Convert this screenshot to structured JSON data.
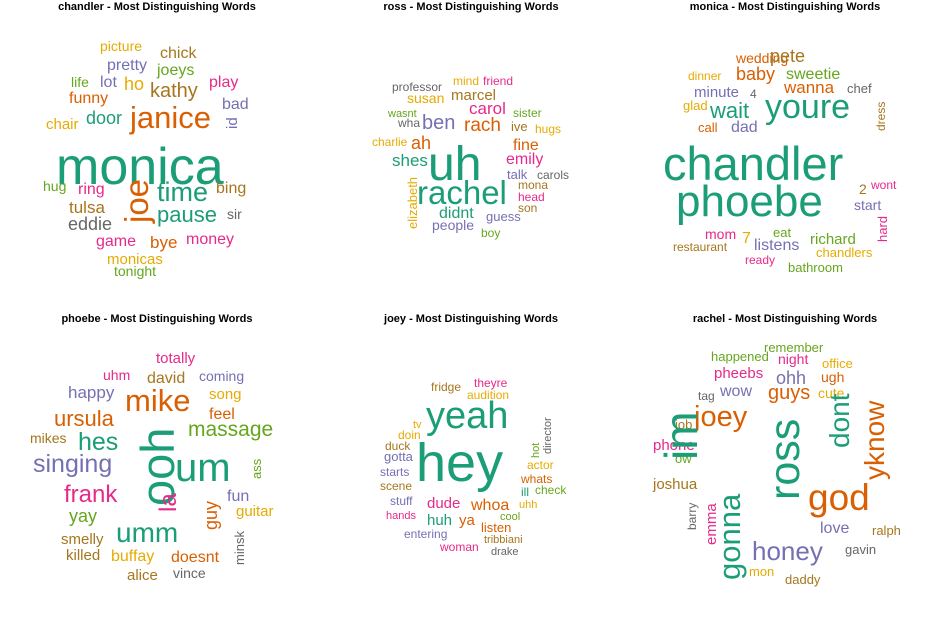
{
  "palette": {
    "teal": "#1b9e77",
    "orange": "#d95f02",
    "purple": "#7570b3",
    "pink": "#e7298a",
    "green": "#66a61e",
    "gold": "#e6ab02",
    "brown": "#a6761d",
    "gray": "#666666"
  },
  "chart_data": [
    {
      "type": "wordcloud",
      "title": "chandler - Most Distinguishing Words",
      "words": [
        {
          "text": "picture",
          "color": "gold"
        },
        {
          "text": "chick",
          "color": "brown"
        },
        {
          "text": "pretty",
          "color": "purple"
        },
        {
          "text": "joeys",
          "color": "green"
        },
        {
          "text": "life",
          "color": "green"
        },
        {
          "text": "lot",
          "color": "purple"
        },
        {
          "text": "ho",
          "color": "gold"
        },
        {
          "text": "kathy",
          "color": "brown"
        },
        {
          "text": "play",
          "color": "pink"
        },
        {
          "text": "funny",
          "color": "orange"
        },
        {
          "text": "bad",
          "color": "purple"
        },
        {
          "text": "door",
          "color": "teal"
        },
        {
          "text": "janice",
          "color": "orange"
        },
        {
          "text": "id",
          "color": "purple"
        },
        {
          "text": "chair",
          "color": "gold"
        },
        {
          "text": "monica",
          "color": "teal"
        },
        {
          "text": "joe",
          "color": "orange"
        },
        {
          "text": "hug",
          "color": "green"
        },
        {
          "text": "ring",
          "color": "pink"
        },
        {
          "text": "time",
          "color": "teal"
        },
        {
          "text": "bing",
          "color": "brown"
        },
        {
          "text": "tulsa",
          "color": "brown"
        },
        {
          "text": "pause",
          "color": "teal"
        },
        {
          "text": "sir",
          "color": "gray"
        },
        {
          "text": "eddie",
          "color": "gray"
        },
        {
          "text": "game",
          "color": "pink"
        },
        {
          "text": "bye",
          "color": "orange"
        },
        {
          "text": "money",
          "color": "pink"
        },
        {
          "text": "monicas",
          "color": "gold"
        },
        {
          "text": "tonight",
          "color": "green"
        }
      ]
    },
    {
      "type": "wordcloud",
      "title": "ross - Most Distinguishing Words",
      "words": [
        {
          "text": "mind",
          "color": "gold"
        },
        {
          "text": "friend",
          "color": "pink"
        },
        {
          "text": "professor",
          "color": "gray"
        },
        {
          "text": "susan",
          "color": "gold"
        },
        {
          "text": "marcel",
          "color": "brown"
        },
        {
          "text": "wasnt",
          "color": "green"
        },
        {
          "text": "carol",
          "color": "pink"
        },
        {
          "text": "sister",
          "color": "green"
        },
        {
          "text": "wha",
          "color": "gray"
        },
        {
          "text": "ben",
          "color": "purple"
        },
        {
          "text": "rach",
          "color": "orange"
        },
        {
          "text": "ive",
          "color": "brown"
        },
        {
          "text": "hugs",
          "color": "gold"
        },
        {
          "text": "charlie",
          "color": "gold"
        },
        {
          "text": "ah",
          "color": "orange"
        },
        {
          "text": "fine",
          "color": "orange"
        },
        {
          "text": "shes",
          "color": "teal"
        },
        {
          "text": "uh",
          "color": "teal"
        },
        {
          "text": "emily",
          "color": "pink"
        },
        {
          "text": "talk",
          "color": "purple"
        },
        {
          "text": "carols",
          "color": "gray"
        },
        {
          "text": "elizabeth",
          "color": "gold"
        },
        {
          "text": "rachel",
          "color": "teal"
        },
        {
          "text": "mona",
          "color": "brown"
        },
        {
          "text": "head",
          "color": "pink"
        },
        {
          "text": "son",
          "color": "brown"
        },
        {
          "text": "didnt",
          "color": "teal"
        },
        {
          "text": "guess",
          "color": "purple"
        },
        {
          "text": "people",
          "color": "purple"
        },
        {
          "text": "boy",
          "color": "green"
        }
      ]
    },
    {
      "type": "wordcloud",
      "title": "monica - Most Distinguishing Words",
      "words": [
        {
          "text": "wedding",
          "color": "orange"
        },
        {
          "text": "pete",
          "color": "brown"
        },
        {
          "text": "sweetie",
          "color": "green"
        },
        {
          "text": "dinner",
          "color": "gold"
        },
        {
          "text": "baby",
          "color": "orange"
        },
        {
          "text": "wanna",
          "color": "orange"
        },
        {
          "text": "chef",
          "color": "gray"
        },
        {
          "text": "minute",
          "color": "purple"
        },
        {
          "text": "4",
          "color": "gray"
        },
        {
          "text": "glad",
          "color": "gold"
        },
        {
          "text": "wait",
          "color": "teal"
        },
        {
          "text": "youre",
          "color": "teal"
        },
        {
          "text": "dress",
          "color": "brown"
        },
        {
          "text": "call",
          "color": "orange"
        },
        {
          "text": "dad",
          "color": "purple"
        },
        {
          "text": "chandler",
          "color": "teal"
        },
        {
          "text": "phoebe",
          "color": "teal"
        },
        {
          "text": "2",
          "color": "brown"
        },
        {
          "text": "wont",
          "color": "pink"
        },
        {
          "text": "start",
          "color": "purple"
        },
        {
          "text": "hard",
          "color": "pink"
        },
        {
          "text": "mom",
          "color": "pink"
        },
        {
          "text": "7",
          "color": "gold"
        },
        {
          "text": "eat",
          "color": "green"
        },
        {
          "text": "listens",
          "color": "purple"
        },
        {
          "text": "richard",
          "color": "green"
        },
        {
          "text": "restaurant",
          "color": "brown"
        },
        {
          "text": "chandlers",
          "color": "gold"
        },
        {
          "text": "ready",
          "color": "pink"
        },
        {
          "text": "bathroom",
          "color": "green"
        }
      ]
    },
    {
      "type": "wordcloud",
      "title": "phoebe - Most Distinguishing Words",
      "words": [
        {
          "text": "totally",
          "color": "pink"
        },
        {
          "text": "uhm",
          "color": "pink"
        },
        {
          "text": "david",
          "color": "brown"
        },
        {
          "text": "coming",
          "color": "purple"
        },
        {
          "text": "happy",
          "color": "purple"
        },
        {
          "text": "mike",
          "color": "orange"
        },
        {
          "text": "song",
          "color": "gold"
        },
        {
          "text": "ursula",
          "color": "orange"
        },
        {
          "text": "feel",
          "color": "orange"
        },
        {
          "text": "massage",
          "color": "green"
        },
        {
          "text": "mikes",
          "color": "brown"
        },
        {
          "text": "hes",
          "color": "teal"
        },
        {
          "text": "ooh",
          "color": "teal"
        },
        {
          "text": "um",
          "color": "teal"
        },
        {
          "text": "singing",
          "color": "purple"
        },
        {
          "text": "ass",
          "color": "green"
        },
        {
          "text": "frank",
          "color": "pink"
        },
        {
          "text": "la",
          "color": "pink"
        },
        {
          "text": "fun",
          "color": "purple"
        },
        {
          "text": "yay",
          "color": "green"
        },
        {
          "text": "guy",
          "color": "orange"
        },
        {
          "text": "guitar",
          "color": "gold"
        },
        {
          "text": "umm",
          "color": "teal"
        },
        {
          "text": "smelly",
          "color": "brown"
        },
        {
          "text": "minsk",
          "color": "gray"
        },
        {
          "text": "killed",
          "color": "brown"
        },
        {
          "text": "buffay",
          "color": "gold"
        },
        {
          "text": "doesnt",
          "color": "orange"
        },
        {
          "text": "alice",
          "color": "brown"
        },
        {
          "text": "vince",
          "color": "gray"
        }
      ]
    },
    {
      "type": "wordcloud",
      "title": "joey - Most Distinguishing Words",
      "words": [
        {
          "text": "theyre",
          "color": "pink"
        },
        {
          "text": "fridge",
          "color": "brown"
        },
        {
          "text": "audition",
          "color": "gold"
        },
        {
          "text": "tv",
          "color": "gold"
        },
        {
          "text": "doin",
          "color": "gold"
        },
        {
          "text": "yeah",
          "color": "teal"
        },
        {
          "text": "director",
          "color": "gray"
        },
        {
          "text": "duck",
          "color": "brown"
        },
        {
          "text": "gotta",
          "color": "purple"
        },
        {
          "text": "hey",
          "color": "teal"
        },
        {
          "text": "hot",
          "color": "green"
        },
        {
          "text": "actor",
          "color": "gold"
        },
        {
          "text": "starts",
          "color": "purple"
        },
        {
          "text": "whats",
          "color": "orange"
        },
        {
          "text": "scene",
          "color": "brown"
        },
        {
          "text": "ill",
          "color": "teal"
        },
        {
          "text": "check",
          "color": "green"
        },
        {
          "text": "stuff",
          "color": "purple"
        },
        {
          "text": "dude",
          "color": "pink"
        },
        {
          "text": "whoa",
          "color": "orange"
        },
        {
          "text": "uhh",
          "color": "gold"
        },
        {
          "text": "hands",
          "color": "pink"
        },
        {
          "text": "huh",
          "color": "teal"
        },
        {
          "text": "ya",
          "color": "orange"
        },
        {
          "text": "cool",
          "color": "green"
        },
        {
          "text": "listen",
          "color": "orange"
        },
        {
          "text": "entering",
          "color": "purple"
        },
        {
          "text": "tribbiani",
          "color": "brown"
        },
        {
          "text": "woman",
          "color": "pink"
        },
        {
          "text": "drake",
          "color": "gray"
        }
      ]
    },
    {
      "type": "wordcloud",
      "title": "rachel - Most Distinguishing Words",
      "words": [
        {
          "text": "remember",
          "color": "green"
        },
        {
          "text": "happened",
          "color": "green"
        },
        {
          "text": "night",
          "color": "pink"
        },
        {
          "text": "office",
          "color": "gold"
        },
        {
          "text": "pheebs",
          "color": "pink"
        },
        {
          "text": "ohh",
          "color": "purple"
        },
        {
          "text": "ugh",
          "color": "orange"
        },
        {
          "text": "tag",
          "color": "gray"
        },
        {
          "text": "wow",
          "color": "purple"
        },
        {
          "text": "guys",
          "color": "orange"
        },
        {
          "text": "cute",
          "color": "gold"
        },
        {
          "text": "job",
          "color": "brown"
        },
        {
          "text": "joey",
          "color": "orange"
        },
        {
          "text": "ross",
          "color": "teal"
        },
        {
          "text": "dont",
          "color": "teal"
        },
        {
          "text": "yknow",
          "color": "orange"
        },
        {
          "text": "phone",
          "color": "pink"
        },
        {
          "text": "ow",
          "color": "green"
        },
        {
          "text": "im",
          "color": "teal"
        },
        {
          "text": "god",
          "color": "orange"
        },
        {
          "text": "joshua",
          "color": "brown"
        },
        {
          "text": "gonna",
          "color": "teal"
        },
        {
          "text": "emma",
          "color": "pink"
        },
        {
          "text": "barry",
          "color": "gray"
        },
        {
          "text": "love",
          "color": "purple"
        },
        {
          "text": "ralph",
          "color": "brown"
        },
        {
          "text": "honey",
          "color": "purple"
        },
        {
          "text": "gavin",
          "color": "gray"
        },
        {
          "text": "mon",
          "color": "gold"
        },
        {
          "text": "daddy",
          "color": "brown"
        }
      ]
    }
  ]
}
